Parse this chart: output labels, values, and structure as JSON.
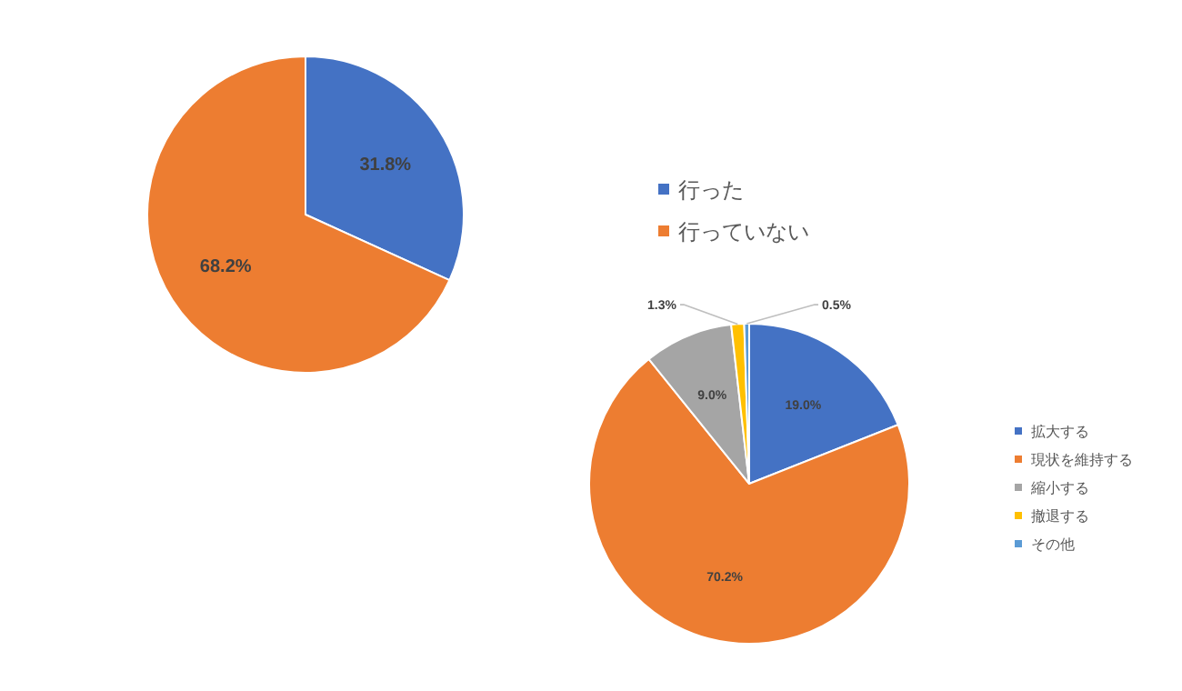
{
  "chart_data": [
    {
      "type": "pie",
      "categories": [
        "行った",
        "行っていない"
      ],
      "values": [
        31.8,
        68.2
      ],
      "colors": [
        "#4472c4",
        "#ed7d31"
      ],
      "value_labels": [
        "31.8%",
        "68.2%"
      ],
      "legend": "right"
    },
    {
      "type": "pie",
      "categories": [
        "拡大する",
        "現状を維持する",
        "縮小する",
        "撤退する",
        "その他"
      ],
      "values": [
        19.0,
        70.2,
        9.0,
        1.3,
        0.5
      ],
      "colors": [
        "#4472c4",
        "#ed7d31",
        "#a5a5a5",
        "#ffc000",
        "#5b9bd5"
      ],
      "value_labels": [
        "19.0%",
        "70.2%",
        "9.0%",
        "1.3%",
        "0.5%"
      ],
      "legend": "right"
    }
  ]
}
